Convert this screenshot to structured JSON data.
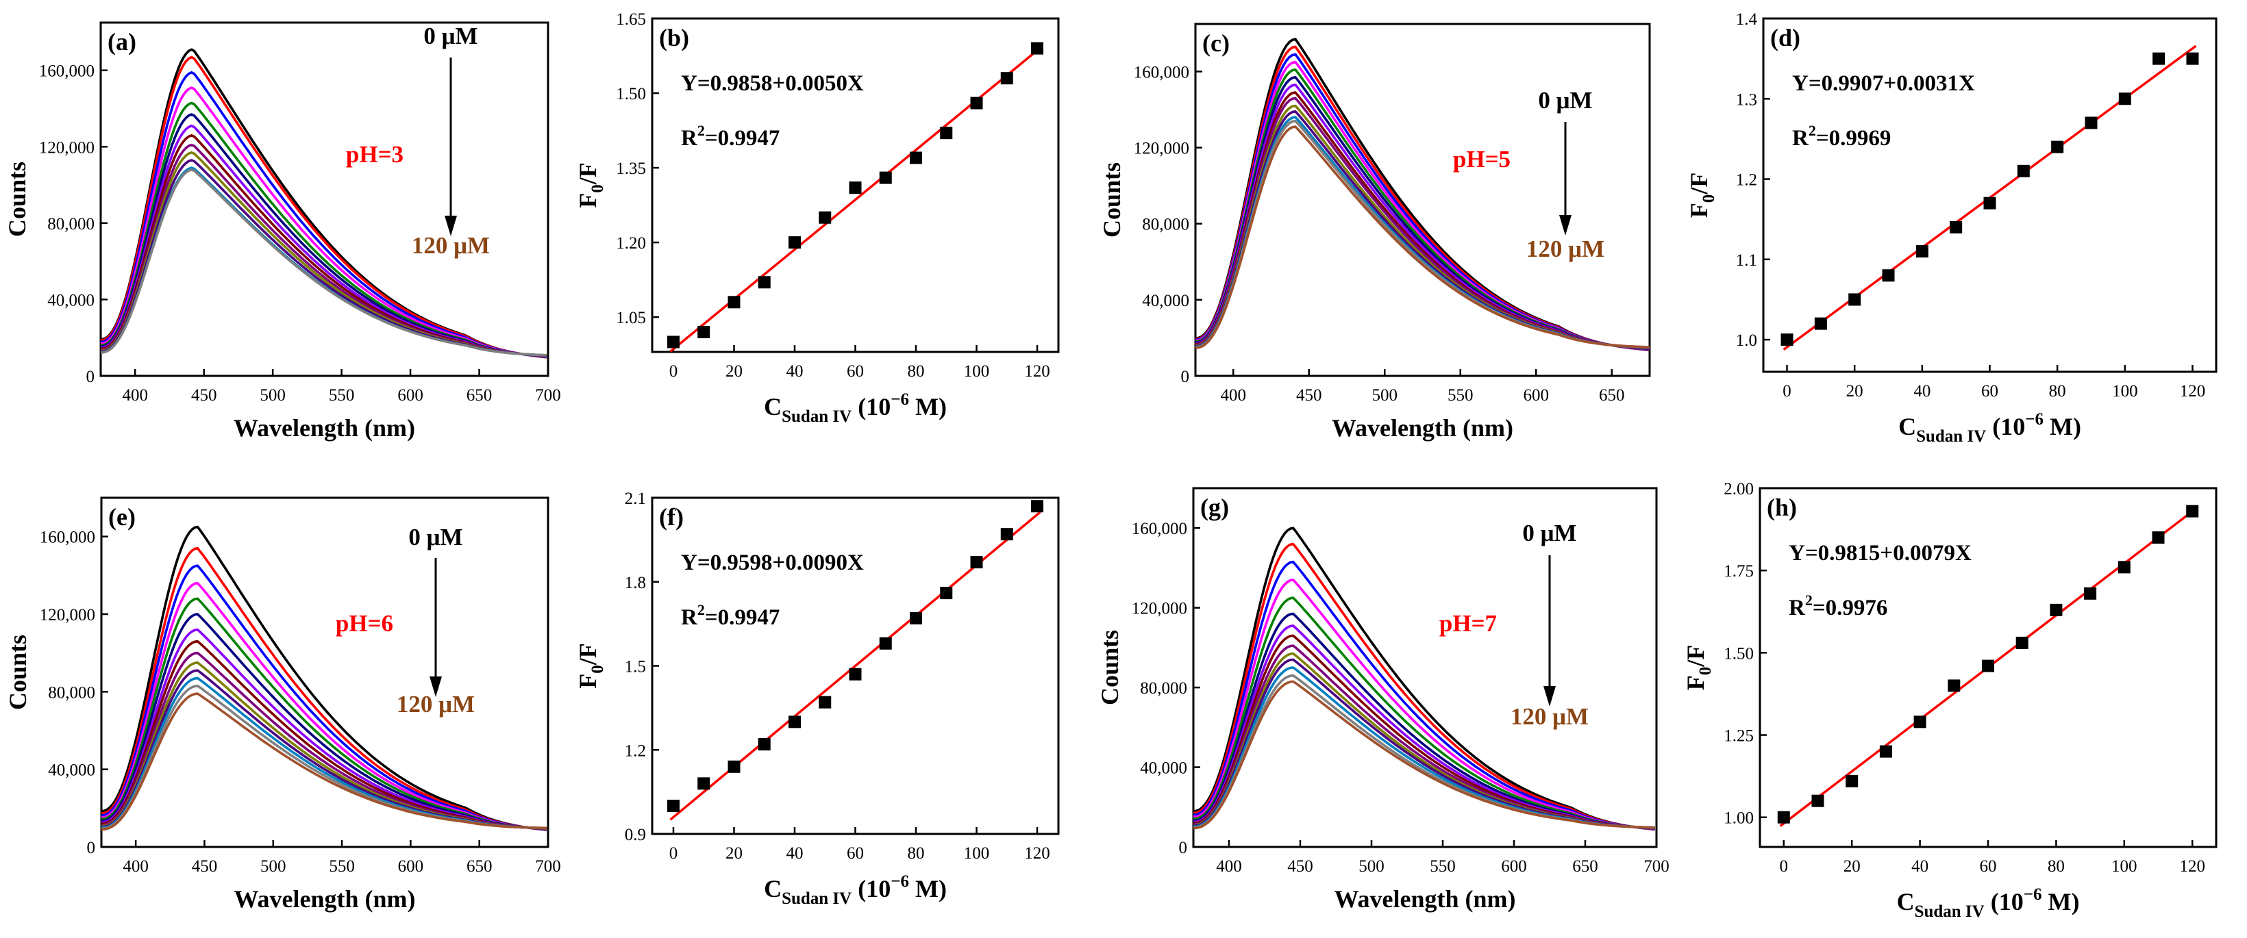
{
  "colors": {
    "spectra": [
      "#000000",
      "#ff0000",
      "#0000ff",
      "#ff00ff",
      "#008000",
      "#000080",
      "#8b00ff",
      "#800000",
      "#7f007f",
      "#7f7f00",
      "#4b0082",
      "#0080c0",
      "#808080",
      "#a0522d"
    ],
    "fit": "#ff0000",
    "ph": "#ff0000",
    "end": "#8b4513",
    "marker": "#000000"
  },
  "chart_data": [
    {
      "type": "line",
      "panel": "(a)",
      "xlabel": "Wavelength (nm)",
      "ylabel": "Counts",
      "xlim": [
        375,
        700
      ],
      "ylim": [
        0,
        185000
      ],
      "xticks": [
        400,
        450,
        500,
        550,
        600,
        650,
        700
      ],
      "yticks": [
        0,
        40000,
        80000,
        120000,
        160000
      ],
      "ytick_labels": [
        "0",
        "40,000",
        "80,000",
        "120,000",
        "160,000"
      ],
      "peak_nm": 442,
      "peaks": [
        171000,
        167000,
        159000,
        151000,
        143000,
        137000,
        131000,
        126000,
        121000,
        117000,
        113000,
        109000,
        108000
      ],
      "end_value": 10000,
      "annotations": {
        "start": "0 μM",
        "end": "120 μM",
        "ph": "pH=3"
      }
    },
    {
      "type": "scatter",
      "panel": "(b)",
      "xlabel_main": "C",
      "xlabel_sub": "Sudan IV",
      "xlabel_rest": " (10",
      "xlabel_sup": "−6",
      "xlabel_end": " M)",
      "ylabel_main": "F",
      "ylabel_sub": "0",
      "ylabel_rest": "/F",
      "xlim": [
        -7,
        127
      ],
      "ylim": [
        0.98,
        1.65
      ],
      "xticks": [
        0,
        20,
        40,
        60,
        80,
        100,
        120
      ],
      "yticks": [
        1.05,
        1.2,
        1.35,
        1.5,
        1.65
      ],
      "ytick_labels": [
        "1.05",
        "1.20",
        "1.35",
        "1.50",
        "1.65"
      ],
      "x": [
        0,
        10,
        20,
        30,
        40,
        50,
        60,
        70,
        80,
        90,
        100,
        110,
        120
      ],
      "y": [
        1.0,
        1.02,
        1.08,
        1.12,
        1.2,
        1.25,
        1.31,
        1.33,
        1.37,
        1.42,
        1.48,
        1.53,
        1.59
      ],
      "fit": {
        "intercept": 0.9858,
        "slope": 0.005
      },
      "equation": "Y=0.9858+0.0050X",
      "r2_prefix": "R",
      "r2_sup": "2",
      "r2_value": "=0.9947"
    },
    {
      "type": "line",
      "panel": "(c)",
      "xlabel": "Wavelength (nm)",
      "ylabel": "Counts",
      "xlim": [
        375,
        675
      ],
      "ylim": [
        0,
        185000
      ],
      "xticks": [
        400,
        450,
        500,
        550,
        600,
        650
      ],
      "yticks": [
        0,
        40000,
        80000,
        120000,
        160000
      ],
      "ytick_labels": [
        "0",
        "40,000",
        "80,000",
        "120,000",
        "160,000"
      ],
      "peak_nm": 441,
      "peaks": [
        177000,
        173000,
        169000,
        165000,
        161000,
        157000,
        153000,
        149000,
        146000,
        142000,
        139000,
        136000,
        134000,
        131000
      ],
      "end_value": 14000,
      "annotations": {
        "start": "0 μM",
        "end": "120 μM",
        "ph": "pH=5"
      }
    },
    {
      "type": "scatter",
      "panel": "(d)",
      "xlabel_main": "C",
      "xlabel_sub": "Sudan IV",
      "xlabel_rest": " (10",
      "xlabel_sup": "−6",
      "xlabel_end": " M)",
      "ylabel_main": "F",
      "ylabel_sub": "0",
      "ylabel_rest": "/F",
      "xlim": [
        -7,
        127
      ],
      "ylim": [
        0.96,
        1.4
      ],
      "xticks": [
        0,
        20,
        40,
        60,
        80,
        100,
        120
      ],
      "yticks": [
        1.0,
        1.1,
        1.2,
        1.3,
        1.4
      ],
      "ytick_labels": [
        "1.0",
        "1.1",
        "1.2",
        "1.3",
        "1.4"
      ],
      "x": [
        0,
        10,
        20,
        30,
        40,
        50,
        60,
        70,
        80,
        90,
        100,
        110,
        120
      ],
      "y": [
        1.0,
        1.02,
        1.05,
        1.08,
        1.11,
        1.14,
        1.17,
        1.21,
        1.24,
        1.27,
        1.3,
        1.35,
        1.35
      ],
      "fit": {
        "intercept": 0.9907,
        "slope": 0.0031
      },
      "equation": "Y=0.9907+0.0031X",
      "r2_prefix": "R",
      "r2_sup": "2",
      "r2_value": "=0.9969"
    },
    {
      "type": "line",
      "panel": "(e)",
      "xlabel": "Wavelength (nm)",
      "ylabel": "Counts",
      "xlim": [
        375,
        700
      ],
      "ylim": [
        0,
        180000
      ],
      "xticks": [
        400,
        450,
        500,
        550,
        600,
        650,
        700
      ],
      "yticks": [
        0,
        40000,
        80000,
        120000,
        160000
      ],
      "ytick_labels": [
        "0",
        "40,000",
        "80,000",
        "120,000",
        "160,000"
      ],
      "peak_nm": 445,
      "peaks": [
        165000,
        154000,
        145000,
        136000,
        128000,
        120000,
        112000,
        106000,
        100000,
        95000,
        91000,
        87000,
        83000,
        79000
      ],
      "end_value": 9000,
      "annotations": {
        "start": "0 μM",
        "end": "120 μM",
        "ph": "pH=6"
      }
    },
    {
      "type": "scatter",
      "panel": "(f)",
      "xlabel_main": "C",
      "xlabel_sub": "Sudan IV",
      "xlabel_rest": " (10",
      "xlabel_sup": "−6",
      "xlabel_end": " M)",
      "ylabel_main": "F",
      "ylabel_sub": "0",
      "ylabel_rest": "/F",
      "xlim": [
        -7,
        127
      ],
      "ylim": [
        0.9,
        2.1
      ],
      "xticks": [
        0,
        20,
        40,
        60,
        80,
        100,
        120
      ],
      "yticks": [
        0.9,
        1.2,
        1.5,
        1.8,
        2.1
      ],
      "ytick_labels": [
        "0.9",
        "1.2",
        "1.5",
        "1.8",
        "2.1"
      ],
      "x": [
        0,
        10,
        20,
        30,
        40,
        50,
        60,
        70,
        80,
        90,
        100,
        110,
        120
      ],
      "y": [
        1.0,
        1.08,
        1.14,
        1.22,
        1.3,
        1.37,
        1.47,
        1.58,
        1.67,
        1.76,
        1.87,
        1.97,
        2.07
      ],
      "fit": {
        "intercept": 0.9598,
        "slope": 0.009
      },
      "equation": "Y=0.9598+0.0090X",
      "r2_prefix": "R",
      "r2_sup": "2",
      "r2_value": "=0.9947"
    },
    {
      "type": "line",
      "panel": "(g)",
      "xlabel": "Wavelength (nm)",
      "ylabel": "Counts",
      "xlim": [
        375,
        700
      ],
      "ylim": [
        0,
        180000
      ],
      "xticks": [
        400,
        450,
        500,
        550,
        600,
        650,
        700
      ],
      "yticks": [
        0,
        40000,
        80000,
        120000,
        160000
      ],
      "ytick_labels": [
        "0",
        "40,000",
        "80,000",
        "120,000",
        "160,000"
      ],
      "peak_nm": 445,
      "peaks": [
        160000,
        152000,
        143000,
        134000,
        125000,
        117000,
        111000,
        106000,
        101000,
        97000,
        94000,
        90000,
        86000,
        83000
      ],
      "end_value": 9000,
      "annotations": {
        "start": "0 μM",
        "end": "120 μM",
        "ph": "pH=7"
      }
    },
    {
      "type": "scatter",
      "panel": "(h)",
      "xlabel_main": "C",
      "xlabel_sub": "Sudan IV",
      "xlabel_rest": " (10",
      "xlabel_sup": "−6",
      "xlabel_end": " M)",
      "ylabel_main": "F",
      "ylabel_sub": "0",
      "ylabel_rest": "/F",
      "xlim": [
        -7,
        127
      ],
      "ylim": [
        0.91,
        2.0
      ],
      "xticks": [
        0,
        20,
        40,
        60,
        80,
        100,
        120
      ],
      "yticks": [
        1.0,
        1.25,
        1.5,
        1.75,
        2.0
      ],
      "ytick_labels": [
        "1.00",
        "1.25",
        "1.50",
        "1.75",
        "2.00"
      ],
      "x": [
        0,
        10,
        20,
        30,
        40,
        50,
        60,
        70,
        80,
        90,
        100,
        110,
        120
      ],
      "y": [
        1.0,
        1.05,
        1.11,
        1.2,
        1.29,
        1.4,
        1.46,
        1.53,
        1.63,
        1.68,
        1.76,
        1.85,
        1.93
      ],
      "fit": {
        "intercept": 0.9815,
        "slope": 0.0079
      },
      "equation": "Y=0.9815+0.0079X",
      "r2_prefix": "R",
      "r2_sup": "2",
      "r2_value": "=0.9976"
    }
  ]
}
